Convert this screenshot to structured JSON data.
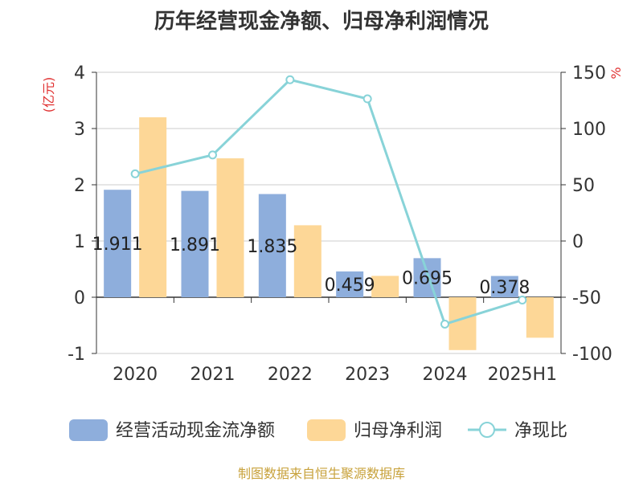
{
  "chart_data": {
    "type": "bar",
    "title": "历年经营现金净额、归母净利润情况",
    "categories": [
      "2020",
      "2021",
      "2022",
      "2023",
      "2024",
      "2025H1"
    ],
    "y_left": {
      "label": "(亿元)",
      "ticks": [
        "4",
        "3",
        "2",
        "1",
        "0",
        "-1"
      ],
      "min": -1,
      "max": 4
    },
    "y_right": {
      "label": "%",
      "ticks": [
        "150",
        "100",
        "50",
        "0",
        "-50",
        "-100"
      ],
      "min": -100,
      "max": 150
    },
    "series": [
      {
        "name": "经营活动现金流净额",
        "kind": "bar",
        "axis": "left",
        "color": "#8eaedc",
        "values": [
          1.911,
          1.891,
          1.835,
          0.459,
          0.695,
          0.378
        ],
        "labels": [
          "1.911",
          "1.891",
          "1.835",
          "0.459",
          "0.695",
          "0.378"
        ]
      },
      {
        "name": "归母净利润",
        "kind": "bar",
        "axis": "left",
        "color": "#fdd797",
        "values": [
          3.2,
          2.47,
          1.28,
          0.38,
          -0.94,
          -0.72
        ]
      },
      {
        "name": "净现比",
        "kind": "line",
        "axis": "right",
        "color": "#88d3d8",
        "values": [
          59.7,
          76.5,
          143.4,
          126.4,
          -73.9,
          -52.5
        ]
      }
    ],
    "grid": true,
    "legend_position": "bottom"
  },
  "footer": {
    "source": "制图数据来自恒生聚源数据库"
  }
}
